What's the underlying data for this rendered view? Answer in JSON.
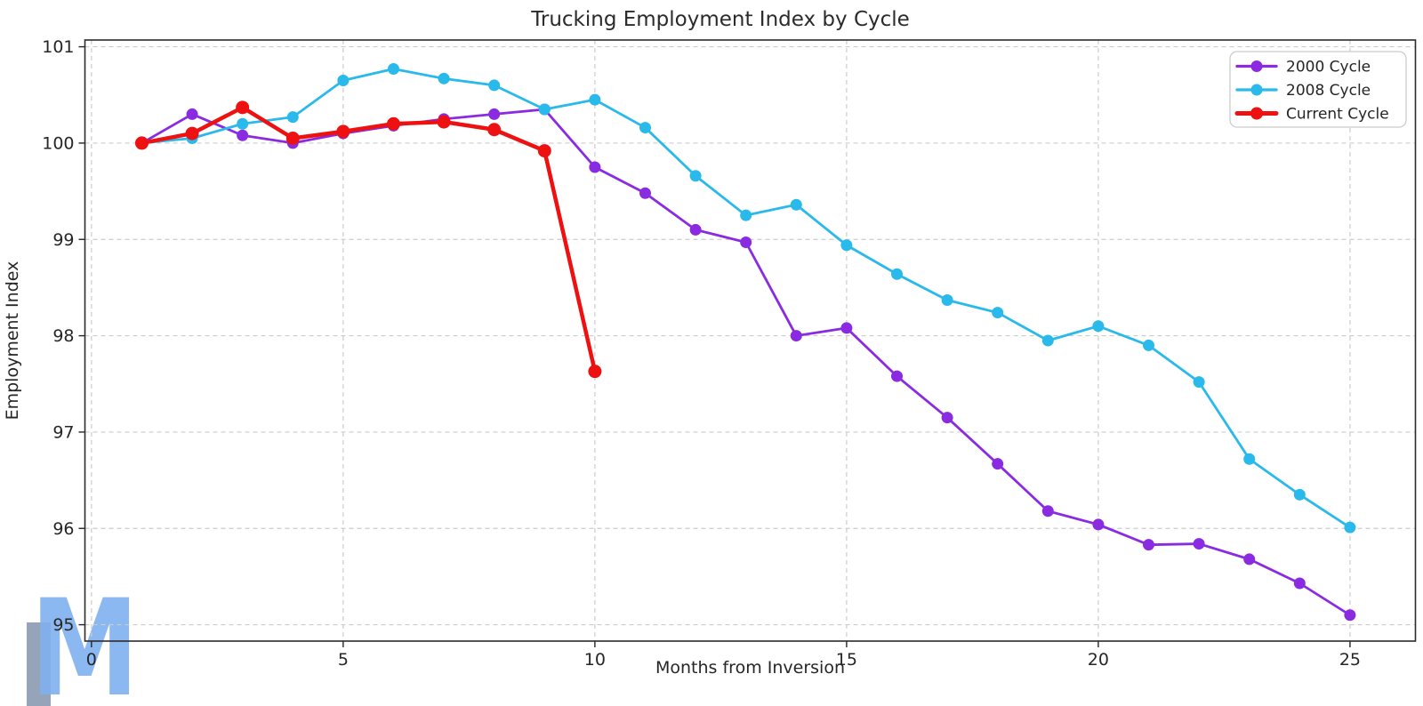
{
  "watermark": {
    "letter": "M",
    "bar_color": "#8d9cb3",
    "m_color": "#7fb0ef"
  },
  "chart_data": {
    "type": "line",
    "title": "Trucking Employment Index by Cycle",
    "xlabel": "Months from Inversion",
    "ylabel": "Employment Index",
    "xlim": [
      -0.13,
      26.3
    ],
    "ylim": [
      94.83,
      101.07
    ],
    "xticks": [
      0,
      5,
      10,
      15,
      20,
      25
    ],
    "yticks": [
      95,
      96,
      97,
      98,
      99,
      100,
      101
    ],
    "grid": true,
    "grid_style": "dashed",
    "legend_position": "top-right",
    "legend_entries": [
      "2000 Cycle",
      "2008 Cycle",
      "Current Cycle"
    ],
    "series": [
      {
        "name": "2000 Cycle",
        "color": "#8A2BE2",
        "line_width": 2.8,
        "marker_radius": 6.5,
        "x": [
          1,
          2,
          3,
          4,
          5,
          6,
          7,
          8,
          9,
          10,
          11,
          12,
          13,
          14,
          15,
          16,
          17,
          18,
          19,
          20,
          21,
          22,
          23,
          24,
          25
        ],
        "y": [
          100.0,
          100.3,
          100.08,
          100.0,
          100.1,
          100.18,
          100.25,
          100.3,
          100.35,
          99.75,
          99.48,
          99.1,
          98.97,
          98.0,
          98.08,
          97.58,
          97.15,
          96.67,
          96.18,
          96.04,
          95.83,
          95.84,
          95.68,
          95.43,
          95.1
        ]
      },
      {
        "name": "2008 Cycle",
        "color": "#29B9EA",
        "line_width": 2.8,
        "marker_radius": 6.5,
        "x": [
          1,
          2,
          3,
          4,
          5,
          6,
          7,
          8,
          9,
          10,
          11,
          12,
          13,
          14,
          15,
          16,
          17,
          18,
          19,
          20,
          21,
          22,
          23,
          24,
          25
        ],
        "y": [
          100.0,
          100.05,
          100.2,
          100.27,
          100.65,
          100.77,
          100.67,
          100.6,
          100.35,
          100.45,
          100.16,
          99.66,
          99.25,
          99.36,
          98.94,
          98.64,
          98.37,
          98.24,
          97.95,
          98.1,
          97.9,
          97.52,
          96.72,
          96.35,
          96.01
        ]
      },
      {
        "name": "Current Cycle",
        "color": "#EE1111",
        "line_width": 4.5,
        "marker_radius": 7.5,
        "x": [
          1,
          2,
          3,
          4,
          5,
          6,
          7,
          8,
          9,
          10
        ],
        "y": [
          100.0,
          100.1,
          100.37,
          100.05,
          100.12,
          100.2,
          100.22,
          100.14,
          99.92,
          97.63
        ]
      }
    ]
  }
}
